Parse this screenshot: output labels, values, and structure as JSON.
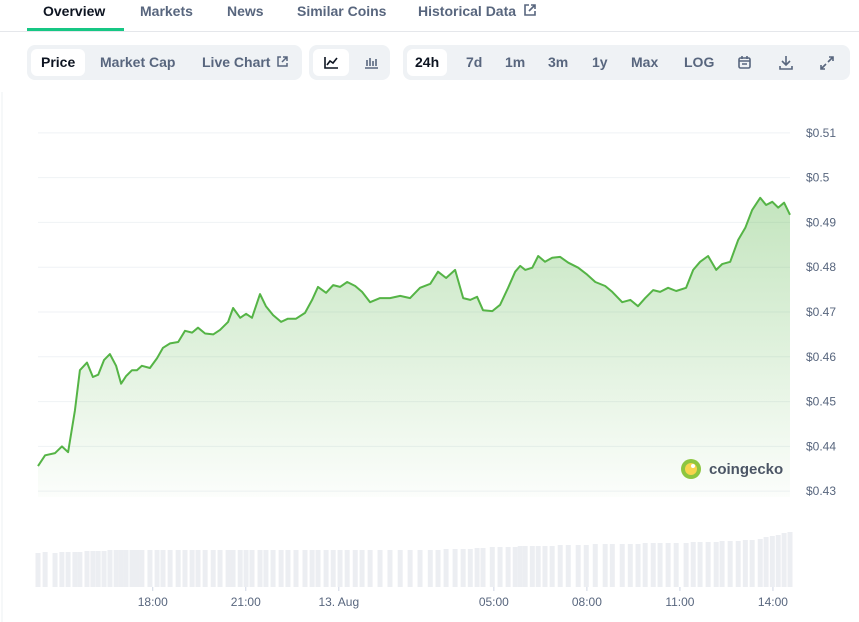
{
  "tabs": [
    "Overview",
    "Markets",
    "News",
    "Similar Coins",
    "Historical Data"
  ],
  "toolbar": {
    "views": [
      "Price",
      "Market Cap",
      "Live Chart"
    ],
    "ranges": [
      "24h",
      "7d",
      "1m",
      "3m",
      "1y",
      "Max",
      "LOG"
    ]
  },
  "chart_data": {
    "type": "line",
    "color": "#55b446",
    "watermark": "coingecko",
    "grid": true,
    "xlim": [
      14.3,
      38.55
    ],
    "ylim": [
      0.4287,
      0.5151
    ],
    "xticks": [
      {
        "value": 18,
        "label": "18:00"
      },
      {
        "value": 21,
        "label": "21:00"
      },
      {
        "value": 24,
        "label": "13. Aug"
      },
      {
        "value": 29,
        "label": "05:00"
      },
      {
        "value": 32,
        "label": "08:00"
      },
      {
        "value": 35,
        "label": "11:00"
      },
      {
        "value": 38,
        "label": "14:00"
      }
    ],
    "yticks": [
      {
        "value": 0.43,
        "label": "$0.43"
      },
      {
        "value": 0.44,
        "label": "$0.44"
      },
      {
        "value": 0.45,
        "label": "$0.45"
      },
      {
        "value": 0.46,
        "label": "$0.46"
      },
      {
        "value": 0.47,
        "label": "$0.47"
      },
      {
        "value": 0.48,
        "label": "$0.48"
      },
      {
        "value": 0.49,
        "label": "$0.49"
      },
      {
        "value": 0.5,
        "label": "$0.5"
      },
      {
        "value": 0.51,
        "label": "$0.51"
      }
    ],
    "x": [
      14.3,
      14.53,
      14.85,
      15.07,
      15.27,
      15.49,
      15.65,
      15.88,
      16.07,
      16.24,
      16.43,
      16.62,
      16.82,
      16.98,
      17.14,
      17.33,
      17.49,
      17.65,
      17.91,
      18.14,
      18.33,
      18.56,
      18.82,
      19.04,
      19.27,
      19.46,
      19.69,
      19.95,
      20.17,
      20.43,
      20.59,
      20.82,
      21.01,
      21.2,
      21.46,
      21.65,
      21.88,
      22.14,
      22.36,
      22.62,
      22.91,
      23.14,
      23.33,
      23.59,
      23.82,
      24.04,
      24.27,
      24.53,
      24.75,
      25.01,
      25.33,
      25.65,
      25.98,
      26.3,
      26.62,
      26.95,
      27.2,
      27.46,
      27.75,
      28.01,
      28.24,
      28.46,
      28.65,
      28.95,
      29.2,
      29.46,
      29.69,
      29.85,
      30.01,
      30.24,
      30.43,
      30.65,
      30.88,
      31.14,
      31.4,
      31.72,
      31.98,
      32.27,
      32.59,
      32.82,
      33.14,
      33.4,
      33.65,
      33.88,
      34.14,
      34.36,
      34.62,
      34.88,
      35.2,
      35.43,
      35.65,
      35.91,
      36.17,
      36.36,
      36.62,
      36.88,
      37.11,
      37.33,
      37.59,
      37.78,
      37.98,
      38.17,
      38.36,
      38.55
    ],
    "values": [
      0.4356,
      0.438,
      0.4385,
      0.44,
      0.4387,
      0.448,
      0.457,
      0.4587,
      0.4555,
      0.456,
      0.4593,
      0.4606,
      0.458,
      0.454,
      0.4557,
      0.457,
      0.457,
      0.458,
      0.4575,
      0.4597,
      0.462,
      0.463,
      0.4633,
      0.4658,
      0.4654,
      0.4665,
      0.4652,
      0.465,
      0.466,
      0.4678,
      0.4709,
      0.4687,
      0.4696,
      0.4687,
      0.474,
      0.4713,
      0.4693,
      0.4678,
      0.4685,
      0.4685,
      0.4698,
      0.4727,
      0.4756,
      0.4743,
      0.476,
      0.4756,
      0.4767,
      0.4758,
      0.4745,
      0.4722,
      0.4731,
      0.4731,
      0.4736,
      0.4731,
      0.4754,
      0.4763,
      0.479,
      0.4776,
      0.4794,
      0.4731,
      0.4727,
      0.4734,
      0.4704,
      0.4702,
      0.4716,
      0.4754,
      0.479,
      0.4803,
      0.4794,
      0.4799,
      0.4825,
      0.4812,
      0.4821,
      0.4823,
      0.481,
      0.4799,
      0.4785,
      0.4767,
      0.4758,
      0.4745,
      0.4722,
      0.4727,
      0.4713,
      0.4731,
      0.4749,
      0.4745,
      0.4754,
      0.4747,
      0.4754,
      0.4794,
      0.4812,
      0.4825,
      0.4794,
      0.4807,
      0.4812,
      0.4861,
      0.4888,
      0.4928,
      0.4955,
      0.4939,
      0.4946,
      0.4933,
      0.4944,
      0.4917
    ],
    "vlim": [
      0,
      60
    ],
    "volume": [
      34,
      35,
      34,
      35,
      35,
      35,
      35,
      36,
      36,
      36,
      36,
      37,
      37,
      37,
      37,
      37,
      37,
      37,
      37,
      37,
      37,
      37,
      37,
      37,
      37,
      37,
      37,
      37,
      37,
      37,
      37,
      37,
      37,
      37,
      37,
      37,
      37,
      37,
      37,
      37,
      37,
      37,
      37,
      37,
      37,
      37,
      37,
      37,
      37,
      37,
      37,
      37,
      37,
      37,
      37,
      37,
      37,
      38,
      38,
      38,
      38,
      39,
      39,
      40,
      40,
      40,
      40,
      41,
      41,
      41,
      41,
      41,
      41,
      42,
      42,
      42,
      42,
      43,
      43,
      43,
      43,
      43,
      43,
      44,
      44,
      44,
      44,
      44,
      44,
      45,
      45,
      45,
      45,
      46,
      46,
      46,
      47,
      47,
      48,
      50,
      51,
      52,
      54,
      55
    ]
  }
}
